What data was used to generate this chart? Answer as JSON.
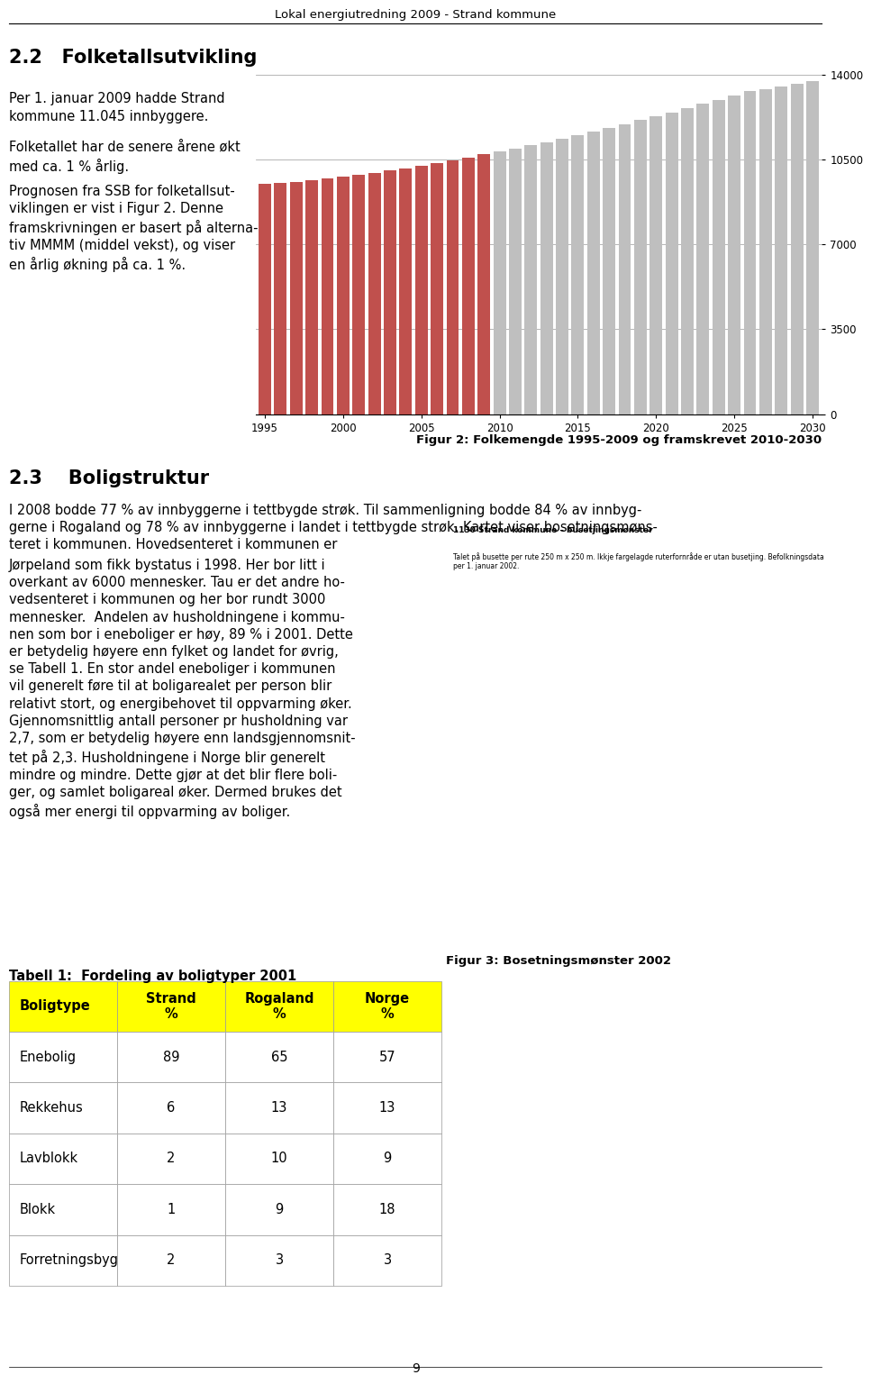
{
  "title": "Figur 2: Folkemengde 1995-2009 og framskrevet 2010-2030",
  "years": [
    1995,
    1996,
    1997,
    1998,
    1999,
    2000,
    2001,
    2002,
    2003,
    2004,
    2005,
    2006,
    2007,
    2008,
    2009,
    2010,
    2011,
    2012,
    2013,
    2014,
    2015,
    2016,
    2017,
    2018,
    2019,
    2020,
    2021,
    2022,
    2023,
    2024,
    2025,
    2026,
    2027,
    2028,
    2029,
    2030
  ],
  "values": [
    9500,
    9540,
    9580,
    9650,
    9720,
    9800,
    9880,
    9960,
    10050,
    10140,
    10240,
    10350,
    10470,
    10590,
    10710,
    10830,
    10960,
    11090,
    11220,
    11360,
    11500,
    11650,
    11800,
    11960,
    12120,
    12280,
    12450,
    12620,
    12790,
    12970,
    13150,
    13330,
    13400,
    13500,
    13620,
    13750
  ],
  "historical_color": "#c0504d",
  "forecast_color": "#bfbfbf",
  "historical_end_year": 2009,
  "yticks": [
    0,
    3500,
    7000,
    10500,
    14000
  ],
  "xtick_years": [
    1995,
    2000,
    2005,
    2010,
    2015,
    2020,
    2025,
    2030
  ],
  "bar_width": 0.8,
  "background_color": "#ffffff",
  "grid_color": "#aaaaaa",
  "page_header": "Lokal energiutredning 2009 - Strand kommune",
  "page_number": "9",
  "table_title": "Tabell 1:  Fordeling av boligtyper 2001",
  "table_headers": [
    "Boligtype",
    "Strand\n%",
    "Rogaland\n%",
    "Norge\n%"
  ],
  "table_data": [
    [
      "Enebolig",
      "89",
      "65",
      "57"
    ],
    [
      "Rekkehus",
      "6",
      "13",
      "13"
    ],
    [
      "Lavblokk",
      "2",
      "10",
      "9"
    ],
    [
      "Blokk",
      "1",
      "9",
      "18"
    ],
    [
      "Forretningsbygg",
      "2",
      "3",
      "3"
    ]
  ],
  "header_color": "#ffff00",
  "fig3_title": "Figur 3: Bosetningsmønster 2002"
}
